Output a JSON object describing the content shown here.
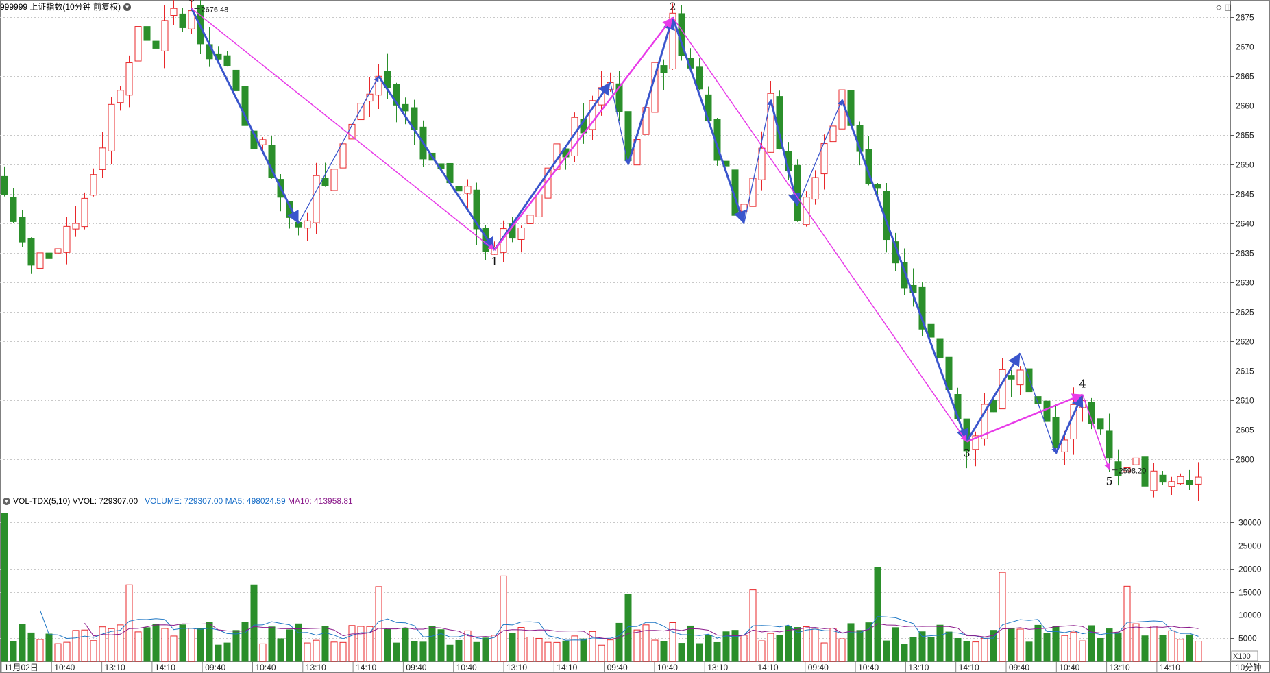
{
  "header": {
    "symbol": "999999",
    "name": "上证指数(10分钟 前复权)",
    "dropdown_icon": "chevron-down-icon"
  },
  "top_right_icons": [
    "diamond-icon",
    "panel-toggle-icon"
  ],
  "volume_header": {
    "indicator": "VOL-TDX(5,10)",
    "vvol_label": "VVOL: 729307.00",
    "volume_label": "VOLUME: 729307.00",
    "ma5_label": "MA5: 498024.59",
    "ma10_label": "MA10: 413958.81",
    "colors": {
      "vvol": "#000000",
      "volume": "#1a6fc8",
      "ma5": "#1a6fc8",
      "ma10": "#8b1a8b"
    }
  },
  "colors": {
    "up": "#e8282b",
    "down": "#2b8f2b",
    "wave_main": "#e83be8",
    "wave_sub": "#3a55cc",
    "grid": "#c8c8c8",
    "axis_text": "#222222",
    "ma5_line": "#1f77c4",
    "ma10_line": "#8b1a8b"
  },
  "chart_data": [
    {
      "type": "candlestick",
      "title": "",
      "price_axis": {
        "min": 2597,
        "max": 2677,
        "ticks": [
          2675,
          2670,
          2665,
          2660,
          2655,
          2650,
          2645,
          2640,
          2635,
          2630,
          2625,
          2620,
          2615,
          2610,
          2605,
          2600
        ]
      },
      "x_labels": [
        "11月02日",
        "10:40",
        "13:10",
        "14:10",
        "09:40",
        "10:40",
        "13:10",
        "14:10",
        "09:40",
        "10:40",
        "13:10",
        "14:10",
        "09:40",
        "10:40",
        "13:10",
        "14:10",
        "09:40",
        "10:40",
        "13:10",
        "14:10",
        "09:40",
        "10:40",
        "13:10",
        "14:10"
      ],
      "bar_count": 135,
      "price_annotations": [
        {
          "text": "2676.48",
          "index": 21,
          "price": 2676.48
        },
        {
          "text": "2598.20",
          "index": 124,
          "price": 2598.2
        }
      ],
      "wave_points": [
        {
          "label": "0",
          "index": 21,
          "price": 2676.5
        },
        {
          "label": "1",
          "index": 55,
          "price": 2635.5
        },
        {
          "label": "2",
          "index": 75,
          "price": 2675.0
        },
        {
          "label": "3",
          "index": 108,
          "price": 2603.0
        },
        {
          "label": "4",
          "index": 121,
          "price": 2611.0
        },
        {
          "label": "5",
          "index": 124,
          "price": 2598.2
        }
      ],
      "sub_waves": [
        [
          [
            21,
            2676.5
          ],
          [
            33,
            2640
          ],
          [
            42,
            2665
          ],
          [
            55,
            2635.5
          ]
        ],
        [
          [
            55,
            2635.5
          ],
          [
            68,
            2664
          ],
          [
            70,
            2650
          ],
          [
            75,
            2675
          ]
        ],
        [
          [
            75,
            2675
          ],
          [
            83,
            2640
          ],
          [
            86,
            2661
          ],
          [
            89,
            2643
          ],
          [
            94,
            2661
          ],
          [
            108,
            2603
          ]
        ],
        [
          [
            108,
            2603
          ],
          [
            114,
            2618
          ],
          [
            118,
            2601
          ],
          [
            121,
            2611
          ],
          [
            124,
            2598.2
          ]
        ]
      ],
      "volume_axis": {
        "min": 0,
        "max": 33000,
        "ticks": [
          30000,
          25000,
          20000,
          15000,
          10000,
          5000
        ],
        "unit_label": "X100"
      },
      "period_label": "10分钟"
    }
  ]
}
